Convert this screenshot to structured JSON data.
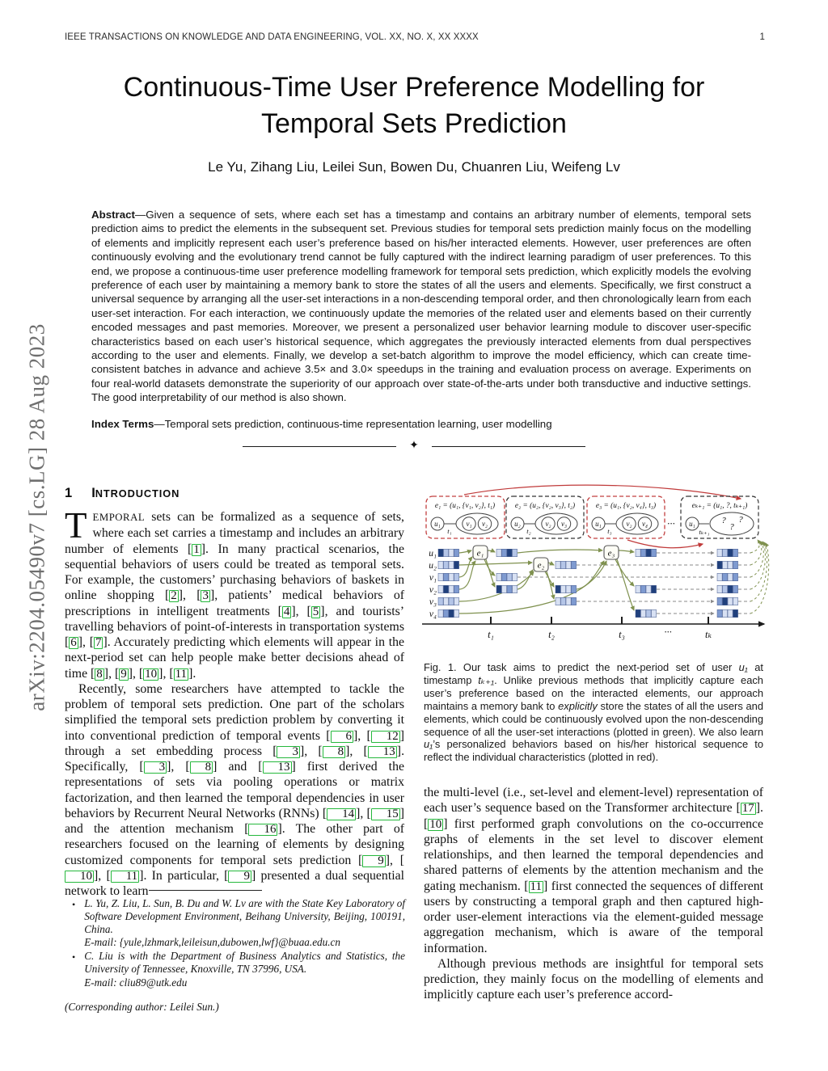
{
  "header": {
    "journal": "IEEE TRANSACTIONS ON KNOWLEDGE AND DATA ENGINEERING, VOL. XX, NO. X, XX XXXX",
    "page_number": "1"
  },
  "arxiv_stamp": "arXiv:2204.05490v7  [cs.LG]  28 Aug 2023",
  "title": "Continuous-Time User Preference Modelling for Temporal Sets Prediction",
  "authors": "Le Yu, Zihang Liu, Leilei Sun, Bowen Du, Chuanren Liu, Weifeng Lv",
  "separator_icon": "✦",
  "abstract_rich": [
    {
      "b": "Abstract"
    },
    {
      "t": "—Given a sequence of sets, where each set has a timestamp and contains an arbitrary number of elements, temporal sets prediction aims to predict the elements in the subsequent set. Previous studies for temporal sets prediction mainly focus on the modelling of elements and implicitly represent each user’s preference based on his/her interacted elements. However, user preferences are often continuously evolving and the evolutionary trend cannot be fully captured with the indirect learning paradigm of user preferences. To this end, we propose a continuous-time user preference modelling framework for temporal sets prediction, which explicitly models the evolving preference of each user by maintaining a memory bank to store the states of all the users and elements. Specifically, we first construct a universal sequence by arranging all the user-set interactions in a non-descending temporal order, and then chronologically learn from each user-set interaction. For each interaction, we continuously update the memories of the related user and elements based on their currently encoded messages and past memories. Moreover, we present a personalized user behavior learning module to discover user-specific characteristics based on each user’s historical sequence, which aggregates the previously interacted elements from dual perspectives according to the user and elements. Finally, we develop a set-batch algorithm to improve the model efficiency, which can create time-consistent batches in advance and achieve 3.5× and 3.0× speedups in the training and evaluation process on average. Experiments on four real-world datasets demonstrate the superiority of our approach over state-of-the-arts under both transductive and inductive settings. The good interpretability of our method is also shown."
    }
  ],
  "index_terms_rich": [
    {
      "b": "Index Terms"
    },
    {
      "t": "—Temporal sets prediction, continuous-time representation learning, user modelling"
    }
  ],
  "section1": {
    "number": "1",
    "title_first": "I",
    "title_rest": "NTRODUCTION"
  },
  "intro": {
    "dropcap": "T",
    "p1": [
      {
        "sc": "EMPORAL"
      },
      {
        "t": " sets can be formalized as a sequence of sets, where each set carries a timestamp and includes an arbitrary number of elements "
      },
      {
        "cite": "1"
      },
      {
        "t": ". In many practical scenarios, the sequential behaviors of users could be treated as temporal sets. For example, the customers’ purchasing behaviors of baskets in online shopping "
      },
      {
        "cite": "2"
      },
      {
        "t": ", "
      },
      {
        "cite": "3"
      },
      {
        "t": ", patients’ medical behaviors of prescriptions in intelligent treatments "
      },
      {
        "cite": "4"
      },
      {
        "t": ", "
      },
      {
        "cite": "5"
      },
      {
        "t": ", and tourists’ travelling behaviors of point-of-interests in transportation systems "
      },
      {
        "cite": "6"
      },
      {
        "t": ", "
      },
      {
        "cite": "7"
      },
      {
        "t": ". Accurately predicting which elements will appear in the next-period set can help people make better decisions ahead of time "
      },
      {
        "cite": "8"
      },
      {
        "t": ", "
      },
      {
        "cite": "9"
      },
      {
        "t": ", "
      },
      {
        "cite": "10"
      },
      {
        "t": ", "
      },
      {
        "cite": "11"
      },
      {
        "t": "."
      }
    ],
    "p2": [
      {
        "t": "Recently, some researchers have attempted to tackle the problem of temporal sets prediction. One part of the scholars simplified the temporal sets prediction problem by converting it into conventional prediction of temporal events "
      },
      {
        "cite": "6"
      },
      {
        "t": ", "
      },
      {
        "cite": "12"
      },
      {
        "t": " through a set embedding process "
      },
      {
        "cite": "3"
      },
      {
        "t": ", "
      },
      {
        "cite": "8"
      },
      {
        "t": ", "
      },
      {
        "cite": "13"
      },
      {
        "t": ". Specifically, "
      },
      {
        "cite": "3"
      },
      {
        "t": ", "
      },
      {
        "cite": "8"
      },
      {
        "t": " and "
      },
      {
        "cite": "13"
      },
      {
        "t": " first derived the representations of sets via pooling operations or matrix factorization, and then learned the temporal dependencies in user behaviors by Recurrent Neural Networks (RNNs) "
      },
      {
        "cite": "14"
      },
      {
        "t": ", "
      },
      {
        "cite": "15"
      },
      {
        "t": " and the attention mechanism "
      },
      {
        "cite": "16"
      },
      {
        "t": ". The other part of researchers focused on the learning of elements by designing customized components for temporal sets prediction "
      },
      {
        "cite": "9"
      },
      {
        "t": ", "
      },
      {
        "cite": "10"
      },
      {
        "t": ", "
      },
      {
        "cite": "11"
      },
      {
        "t": ". In particular, "
      },
      {
        "cite": "9"
      },
      {
        "t": " presented a dual sequential network to learn"
      }
    ]
  },
  "rightcol": {
    "p1": [
      {
        "t": "the multi-level (i.e., set-level and element-level) representation of each user’s sequence based on the Transformer architecture "
      },
      {
        "cite": "17"
      },
      {
        "t": ". "
      },
      {
        "cite": "10"
      },
      {
        "t": " first performed graph convolutions on the co-occurrence graphs of elements in the set level to discover element relationships, and then learned the temporal dependencies and shared patterns of elements by the attention mechanism and the gating mechanism. "
      },
      {
        "cite": "11"
      },
      {
        "t": " first connected the sequences of different users by constructing a temporal graph and then captured high-order user-element interactions via the element-guided message aggregation mechanism, which is aware of the temporal information."
      }
    ],
    "p2": [
      {
        "t": "Although previous methods are insightful for temporal sets prediction, they mainly focus on the modelling of elements and implicitly capture each user’s preference accord-"
      }
    ]
  },
  "caption_rich": [
    {
      "t": "Fig. 1. Our task aims to predict the next-period set of user "
    },
    {
      "i": "u₁"
    },
    {
      "t": " at timestamp "
    },
    {
      "i": "tₖ₊₁"
    },
    {
      "t": ". Unlike previous methods that implicitly capture each user’s preference based on the interacted elements, our approach maintains a memory bank to "
    },
    {
      "i": "explicitly"
    },
    {
      "t": " store the states of all the users and elements, which could be continuously evolved upon the non-descending sequence of all the user-set interactions (plotted in green). We also learn "
    },
    {
      "i": "u₁"
    },
    {
      "t": "’s personalized behaviors based on his/her historical sequence to reflect the individual characteristics (plotted in red)."
    }
  ],
  "footnotes": {
    "items": [
      {
        "text": "L. Yu, Z. Liu, L. Sun, B. Du and W. Lv are with the State Key Laboratory of Software Development Environment, Beihang University, Beijing, 100191, China.",
        "email": "E-mail: {yule,lzhmark,leileisun,dubowen,lwf}@buaa.edu.cn"
      },
      {
        "text": "C. Liu is with the Department of Business Analytics and Statistics, the University of Tennessee, Knoxville, TN 37996, USA.",
        "email": "E-mail: cliu89@utk.edu"
      }
    ],
    "corresponding": "(Corresponding author: Leilei Sun.)"
  },
  "figure1": {
    "events": [
      {
        "tuple": "e₁ = (u₁, {v₁, v₂}, t₁)",
        "user": "u₁",
        "time": "t₁",
        "elements": [
          "v₁",
          "v₂"
        ]
      },
      {
        "tuple": "e₂ = (u₂, {v₂, v₃}, t₂)",
        "user": "u₂",
        "time": "t₂",
        "elements": [
          "v₂",
          "v₃"
        ]
      },
      {
        "tuple": "e₃ = (u₁, {v₂, v₄}, t₃)",
        "user": "u₁",
        "time": "t₃",
        "elements": [
          "v₂",
          "v₄"
        ]
      },
      {
        "tuple": "eₖ₊₁ = (u₁, ?, tₖ₊₁)",
        "user": "u₁",
        "time": "tₖ₊₁",
        "elements": [
          "?",
          "?",
          "?"
        ]
      }
    ],
    "event_nodes": [
      "e₁",
      "e₂",
      "e₃"
    ],
    "between_ellipsis": "···",
    "rows": [
      {
        "label": "u₁",
        "blocks": [
          [
            3,
            1,
            0,
            2
          ],
          [
            0,
            2,
            3,
            1
          ],
          [
            0,
            2,
            3,
            2
          ],
          [
            0,
            1,
            3,
            2
          ]
        ]
      },
      {
        "label": "u₂",
        "blocks": [
          [
            0,
            1,
            0,
            3
          ],
          [
            0,
            1,
            0,
            2
          ],
          [
            3,
            0,
            0,
            2
          ]
        ]
      },
      {
        "label": "v₁",
        "blocks": [
          [
            0,
            2,
            0,
            1
          ],
          [
            0,
            2,
            1,
            0
          ],
          [
            0,
            2,
            0,
            2
          ]
        ]
      },
      {
        "label": "v₂",
        "blocks": [
          [
            0,
            3,
            0,
            2
          ],
          [
            3,
            0,
            2,
            0
          ],
          [
            3,
            0,
            0,
            2
          ],
          [
            0,
            2,
            0,
            3
          ],
          [
            0,
            1,
            3,
            2
          ]
        ]
      },
      {
        "label": "v₃",
        "blocks": [
          [
            1,
            0,
            1,
            0
          ],
          [
            0,
            1,
            0,
            2
          ],
          [
            2,
            3,
            0,
            0
          ]
        ]
      },
      {
        "label": "v₄",
        "blocks": [
          [
            0,
            2,
            3,
            0
          ],
          [
            3,
            0,
            1,
            0
          ],
          [
            2,
            0,
            0,
            3
          ]
        ]
      }
    ],
    "palette": [
      "#d8e1f3",
      "#b4c5e7",
      "#7e9ad0",
      "#20407c"
    ],
    "timeline": [
      "t₁",
      "t₂",
      "t₃",
      "···",
      "tₖ"
    ],
    "colors": {
      "green": "#7f914f",
      "red": "#c03a3a",
      "dash_gray": "#8a8a8a"
    }
  }
}
